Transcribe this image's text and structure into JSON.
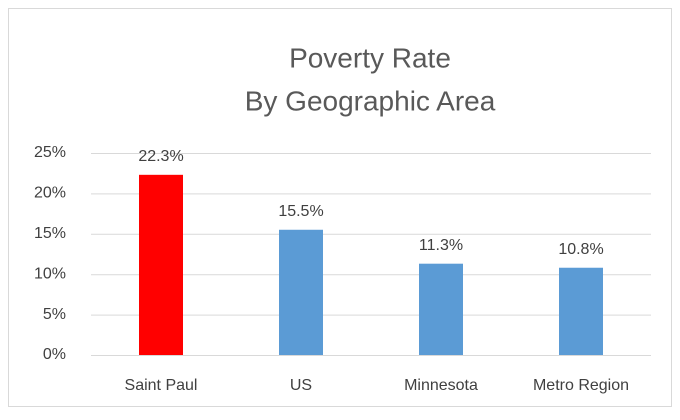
{
  "chart_data": {
    "type": "bar",
    "title": "Poverty Rate",
    "subtitle": "By Geographic Area",
    "categories": [
      "Saint Paul",
      "US",
      "Minnesota",
      "Metro Region"
    ],
    "values": [
      22.3,
      15.5,
      11.3,
      10.8
    ],
    "value_labels": [
      "22.3%",
      "15.5%",
      "11.3%",
      "10.8%"
    ],
    "colors": [
      "#ff0000",
      "#5b9bd5",
      "#5b9bd5",
      "#5b9bd5"
    ],
    "ylim": [
      0,
      25
    ],
    "yticks": [
      {
        "value": 0,
        "label": "0%"
      },
      {
        "value": 5,
        "label": "5%"
      },
      {
        "value": 10,
        "label": "10%"
      },
      {
        "value": 15,
        "label": "15%"
      },
      {
        "value": 20,
        "label": "20%"
      },
      {
        "value": 25,
        "label": "25%"
      }
    ],
    "grid": true
  }
}
